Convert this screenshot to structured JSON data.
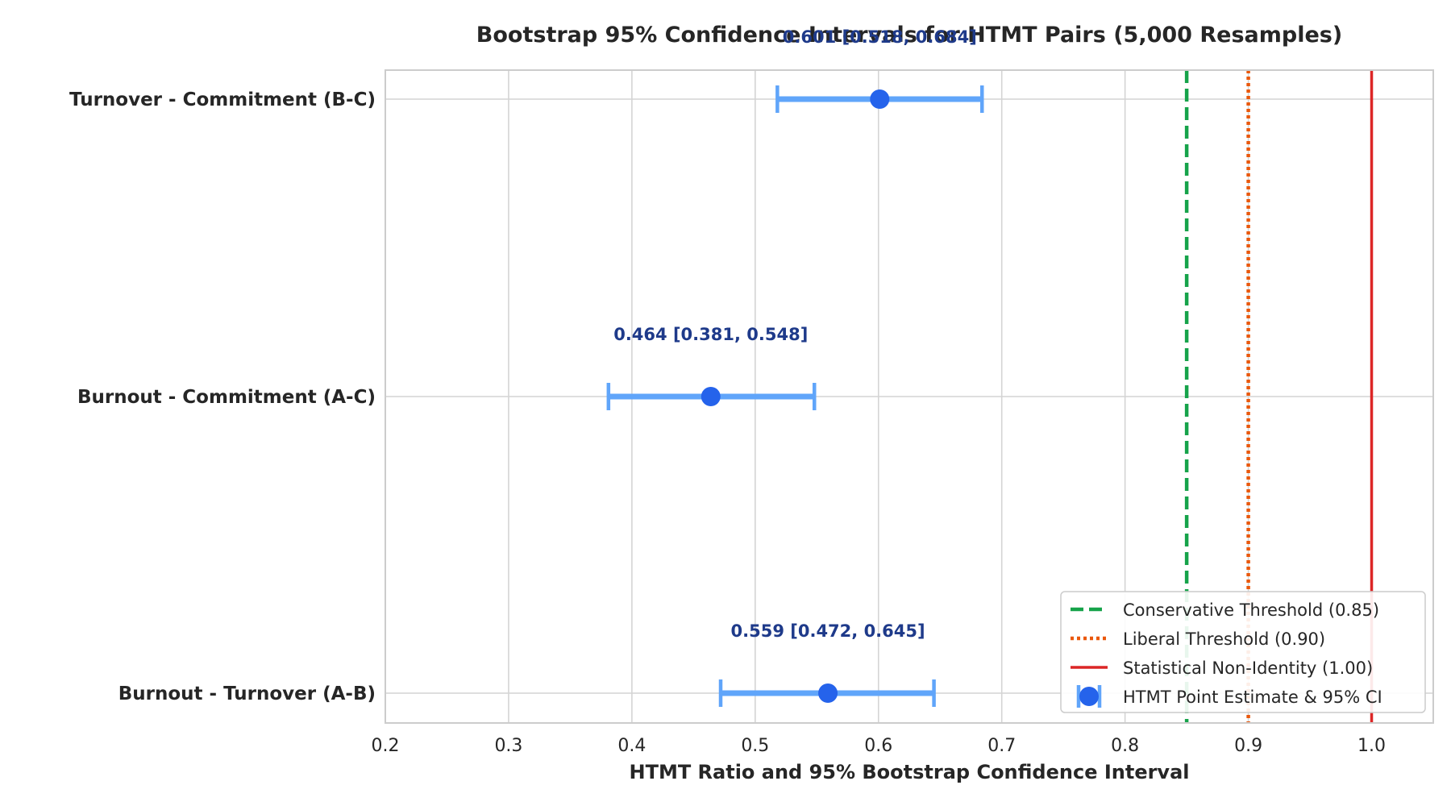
{
  "chart_data": {
    "type": "errorbar",
    "title": "Bootstrap 95% Confidence Intervals for HTMT Pairs (5,000 Resamples)",
    "xlabel": "HTMT Ratio and 95% Bootstrap Confidence Interval",
    "ylabel": "",
    "xlim": [
      0.2,
      1.05
    ],
    "xticks": [
      0.2,
      0.3,
      0.4,
      0.5,
      0.6,
      0.7,
      0.8,
      0.9,
      1.0
    ],
    "xtick_labels": [
      "0.2",
      "0.3",
      "0.4",
      "0.5",
      "0.6",
      "0.7",
      "0.8",
      "0.9",
      "1.0"
    ],
    "grid": true,
    "pairs": [
      {
        "label": "Burnout - Turnover (A-B)",
        "estimate": 0.559,
        "lower": 0.472,
        "upper": 0.645,
        "annotation": "0.559 [0.472, 0.645]"
      },
      {
        "label": "Burnout - Commitment (A-C)",
        "estimate": 0.464,
        "lower": 0.381,
        "upper": 0.548,
        "annotation": "0.464 [0.381, 0.548]"
      },
      {
        "label": "Turnover - Commitment (B-C)",
        "estimate": 0.601,
        "lower": 0.518,
        "upper": 0.684,
        "annotation": "0.601 [0.518, 0.684]"
      }
    ],
    "thresholds": [
      {
        "name": "Conservative Threshold (0.85)",
        "value": 0.85,
        "color": "#16a34a",
        "style": "dashed"
      },
      {
        "name": "Liberal Threshold (0.90)",
        "value": 0.9,
        "color": "#ea580c",
        "style": "dotted"
      },
      {
        "name": "Statistical Non-Identity (1.00)",
        "value": 1.0,
        "color": "#dc2626",
        "style": "solid"
      }
    ],
    "point_series": {
      "name": "HTMT Point Estimate & 95% CI",
      "point_color": "#2563eb",
      "bar_color": "#60a5fa"
    },
    "legend_position": "lower-right"
  }
}
